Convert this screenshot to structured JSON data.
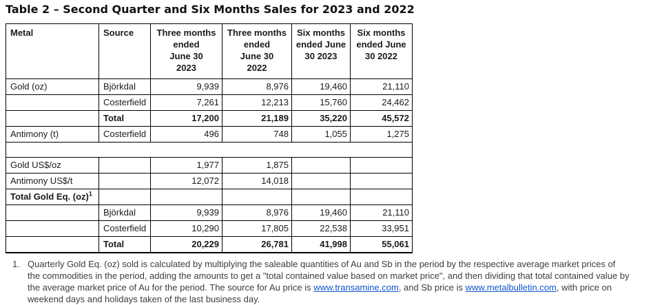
{
  "title": "Table 2 – Second Quarter and Six Months Sales for 2023 and 2022",
  "table": {
    "columns": [
      "Metal",
      "Source",
      "Three months\nended\nJune 30\n2023",
      "Three months\nended\nJune 30\n2022",
      "Six months\nended June\n30 2023",
      "Six months\nended June\n30 2022"
    ],
    "rows": [
      {
        "metal": "Gold (oz)",
        "source": "Björkdal",
        "values": [
          "9,939",
          "8,976",
          "19,460",
          "21,110"
        ]
      },
      {
        "metal": "",
        "source": "Costerfield",
        "values": [
          "7,261",
          "12,213",
          "15,760",
          "24,462"
        ]
      },
      {
        "metal": "",
        "source": "Total",
        "values": [
          "17,200",
          "21,189",
          "35,220",
          "45,572"
        ],
        "bold": true
      },
      {
        "metal": "Antimony (t)",
        "source": "Costerfield",
        "values": [
          "496",
          "748",
          "1,055",
          "1,275"
        ]
      },
      {
        "spacer": true
      },
      {
        "metal": "Gold US$/oz",
        "source": "",
        "values": [
          "1,977",
          "1,875",
          "",
          ""
        ]
      },
      {
        "metal": "Antimony US$/t",
        "source": "",
        "values": [
          "12,072",
          "14,018",
          "",
          ""
        ]
      },
      {
        "metal": "Total Gold Eq. (oz)",
        "metal_sup": "1",
        "source": "",
        "values": [
          "",
          "",
          "",
          ""
        ],
        "bold": true
      },
      {
        "metal": "",
        "source": "Björkdal",
        "values": [
          "9,939",
          "8,976",
          "19,460",
          "21,110"
        ]
      },
      {
        "metal": "",
        "source": "Costerfield",
        "values": [
          "10,290",
          "17,805",
          "22,538",
          "33,951"
        ]
      },
      {
        "metal": "",
        "source": "Total",
        "values": [
          "20,229",
          "26,781",
          "41,998",
          "55,061"
        ],
        "bold": true
      }
    ]
  },
  "footnote": {
    "marker": "1.",
    "segments": [
      {
        "name": "footnote-text-1",
        "text": "Quarterly Gold Eq. (oz) sold is calculated by multiplying the saleable quantities of Au and Sb in the period by the respective average market prices of the commodities in the period, adding the amounts to get a \"total contained value based on market price\", and then dividing that total contained value by the average market price of Au for the period. The source for Au price is "
      },
      {
        "name": "transamine-link",
        "text": "www.transamine.com",
        "link": true
      },
      {
        "name": "footnote-text-2",
        "text": ", and Sb price is "
      },
      {
        "name": "metalbulletin-link",
        "text": "www.metalbulletin.com",
        "link": true
      },
      {
        "name": "footnote-text-3",
        "text": ", with price on weekend days and holidays taken of the last business day."
      }
    ]
  },
  "colors": {
    "link": "#1155cc",
    "border": "#000000",
    "text": "#1a1a1a",
    "footnote_text": "#3c3c3c"
  }
}
